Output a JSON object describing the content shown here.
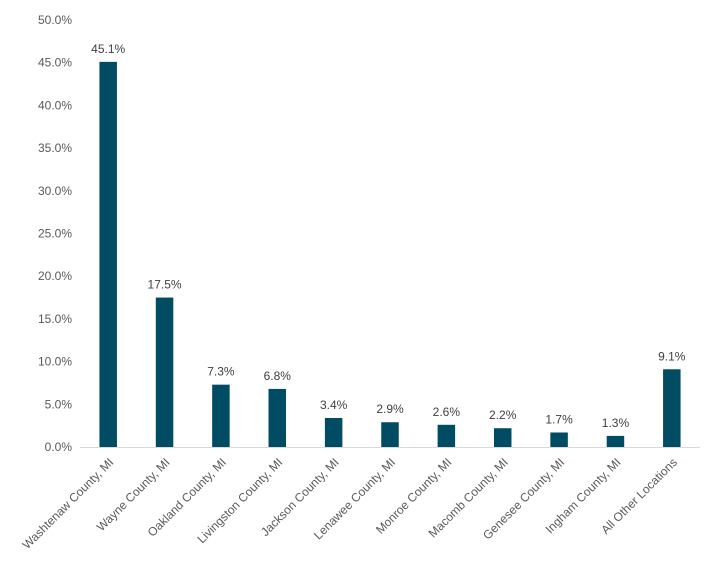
{
  "chart_data": {
    "type": "bar",
    "title": "",
    "xlabel": "",
    "ylabel": "",
    "categories": [
      "Washtenaw County, MI",
      "Wayne County, MI",
      "Oakland County, MI",
      "Livingston County, MI",
      "Jackson County, MI",
      "Lenawee County, MI",
      "Monroe County, MI",
      "Macomb County, MI",
      "Genesee County, MI",
      "Ingham County, MI",
      "All Other Locations"
    ],
    "values": [
      45.1,
      17.5,
      7.3,
      6.8,
      3.4,
      2.9,
      2.6,
      2.2,
      1.7,
      1.3,
      9.1
    ],
    "data_labels": [
      "45.1%",
      "17.5%",
      "7.3%",
      "6.8%",
      "3.4%",
      "2.9%",
      "2.6%",
      "2.2%",
      "1.7%",
      "1.3%",
      "9.1%"
    ],
    "ylim": [
      0,
      50
    ],
    "yticks": [
      0,
      5,
      10,
      15,
      20,
      25,
      30,
      35,
      40,
      45,
      50
    ],
    "ytick_labels": [
      "0.0%",
      "5.0%",
      "10.0%",
      "15.0%",
      "20.0%",
      "25.0%",
      "30.0%",
      "35.0%",
      "40.0%",
      "45.0%",
      "50.0%"
    ],
    "grid": false,
    "legend": "none",
    "colors": {
      "bar": "#004c63",
      "axis": "#d9d9d9"
    }
  }
}
